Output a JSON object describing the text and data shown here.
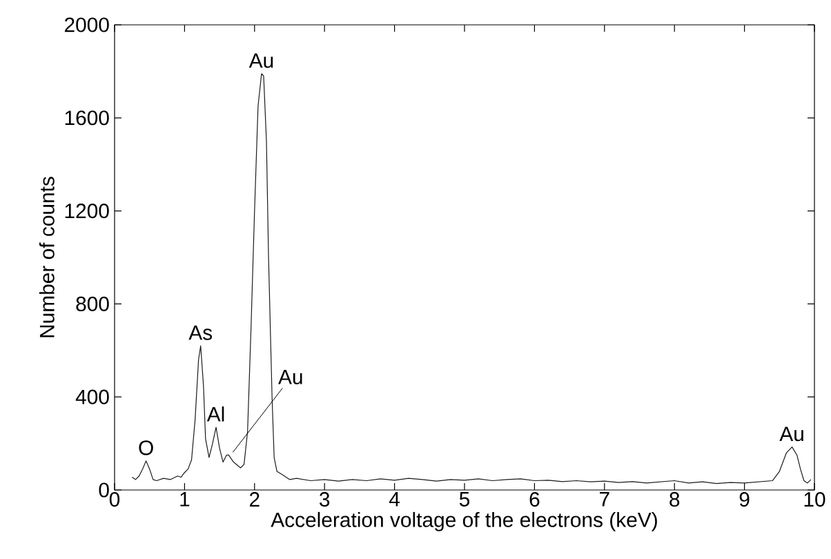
{
  "chart_data": {
    "type": "line",
    "xlabel": "Acceleration voltage of the electrons (keV)",
    "ylabel": "Number of counts",
    "xlim": [
      0,
      10
    ],
    "ylim": [
      0,
      2000
    ],
    "xticks": [
      0,
      1,
      2,
      3,
      4,
      5,
      6,
      7,
      8,
      9,
      10
    ],
    "yticks": [
      0,
      400,
      800,
      1200,
      1600,
      2000
    ],
    "grid": false,
    "marker": "none",
    "line_style": "solid",
    "series": [
      {
        "color": "#1a1a1a",
        "x": [
          0.25,
          0.3,
          0.35,
          0.4,
          0.45,
          0.5,
          0.55,
          0.6,
          0.7,
          0.8,
          0.9,
          0.95,
          1.0,
          1.05,
          1.1,
          1.15,
          1.2,
          1.23,
          1.27,
          1.3,
          1.35,
          1.4,
          1.45,
          1.5,
          1.55,
          1.6,
          1.63,
          1.7,
          1.8,
          1.85,
          1.9,
          1.95,
          2.0,
          2.05,
          2.1,
          2.13,
          2.17,
          2.2,
          2.25,
          2.28,
          2.32,
          2.4,
          2.5,
          2.6,
          2.8,
          3.0,
          3.2,
          3.4,
          3.6,
          3.8,
          4.0,
          4.2,
          4.4,
          4.6,
          4.8,
          5.0,
          5.2,
          5.4,
          5.6,
          5.8,
          6.0,
          6.2,
          6.4,
          6.6,
          6.8,
          7.0,
          7.2,
          7.4,
          7.6,
          7.8,
          8.0,
          8.2,
          8.4,
          8.6,
          8.8,
          9.0,
          9.2,
          9.4,
          9.5,
          9.6,
          9.68,
          9.75,
          9.8,
          9.85,
          9.9,
          9.95
        ],
        "values": [
          55,
          45,
          60,
          90,
          125,
          90,
          45,
          40,
          50,
          45,
          60,
          55,
          75,
          90,
          130,
          300,
          560,
          620,
          450,
          220,
          140,
          200,
          270,
          180,
          120,
          150,
          150,
          120,
          95,
          110,
          250,
          700,
          1200,
          1650,
          1790,
          1780,
          1500,
          1000,
          400,
          140,
          80,
          65,
          45,
          50,
          40,
          45,
          38,
          45,
          40,
          48,
          42,
          50,
          45,
          38,
          45,
          42,
          48,
          40,
          45,
          48,
          40,
          42,
          36,
          40,
          35,
          38,
          32,
          36,
          30,
          35,
          40,
          30,
          35,
          28,
          32,
          30,
          35,
          40,
          80,
          160,
          185,
          150,
          90,
          40,
          30,
          45
        ]
      }
    ],
    "annotations": [
      {
        "text": "O",
        "x": 0.45,
        "y": 125
      },
      {
        "text": "As",
        "x": 1.23,
        "y": 620
      },
      {
        "text": "Al",
        "x": 1.45,
        "y": 270
      },
      {
        "text": "Au",
        "x": 1.63,
        "y": 150
      },
      {
        "text": "Au",
        "x": 2.1,
        "y": 1790
      },
      {
        "text": "Au",
        "x": 9.68,
        "y": 185
      }
    ]
  }
}
